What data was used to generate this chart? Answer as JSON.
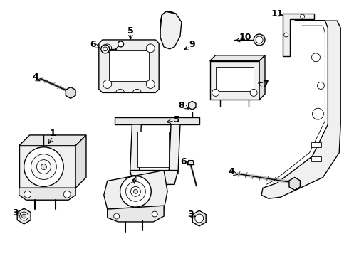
{
  "background_color": "#ffffff",
  "line_color": "#000000",
  "label_color": "#000000",
  "fig_width": 4.9,
  "fig_height": 3.6,
  "dpi": 100
}
